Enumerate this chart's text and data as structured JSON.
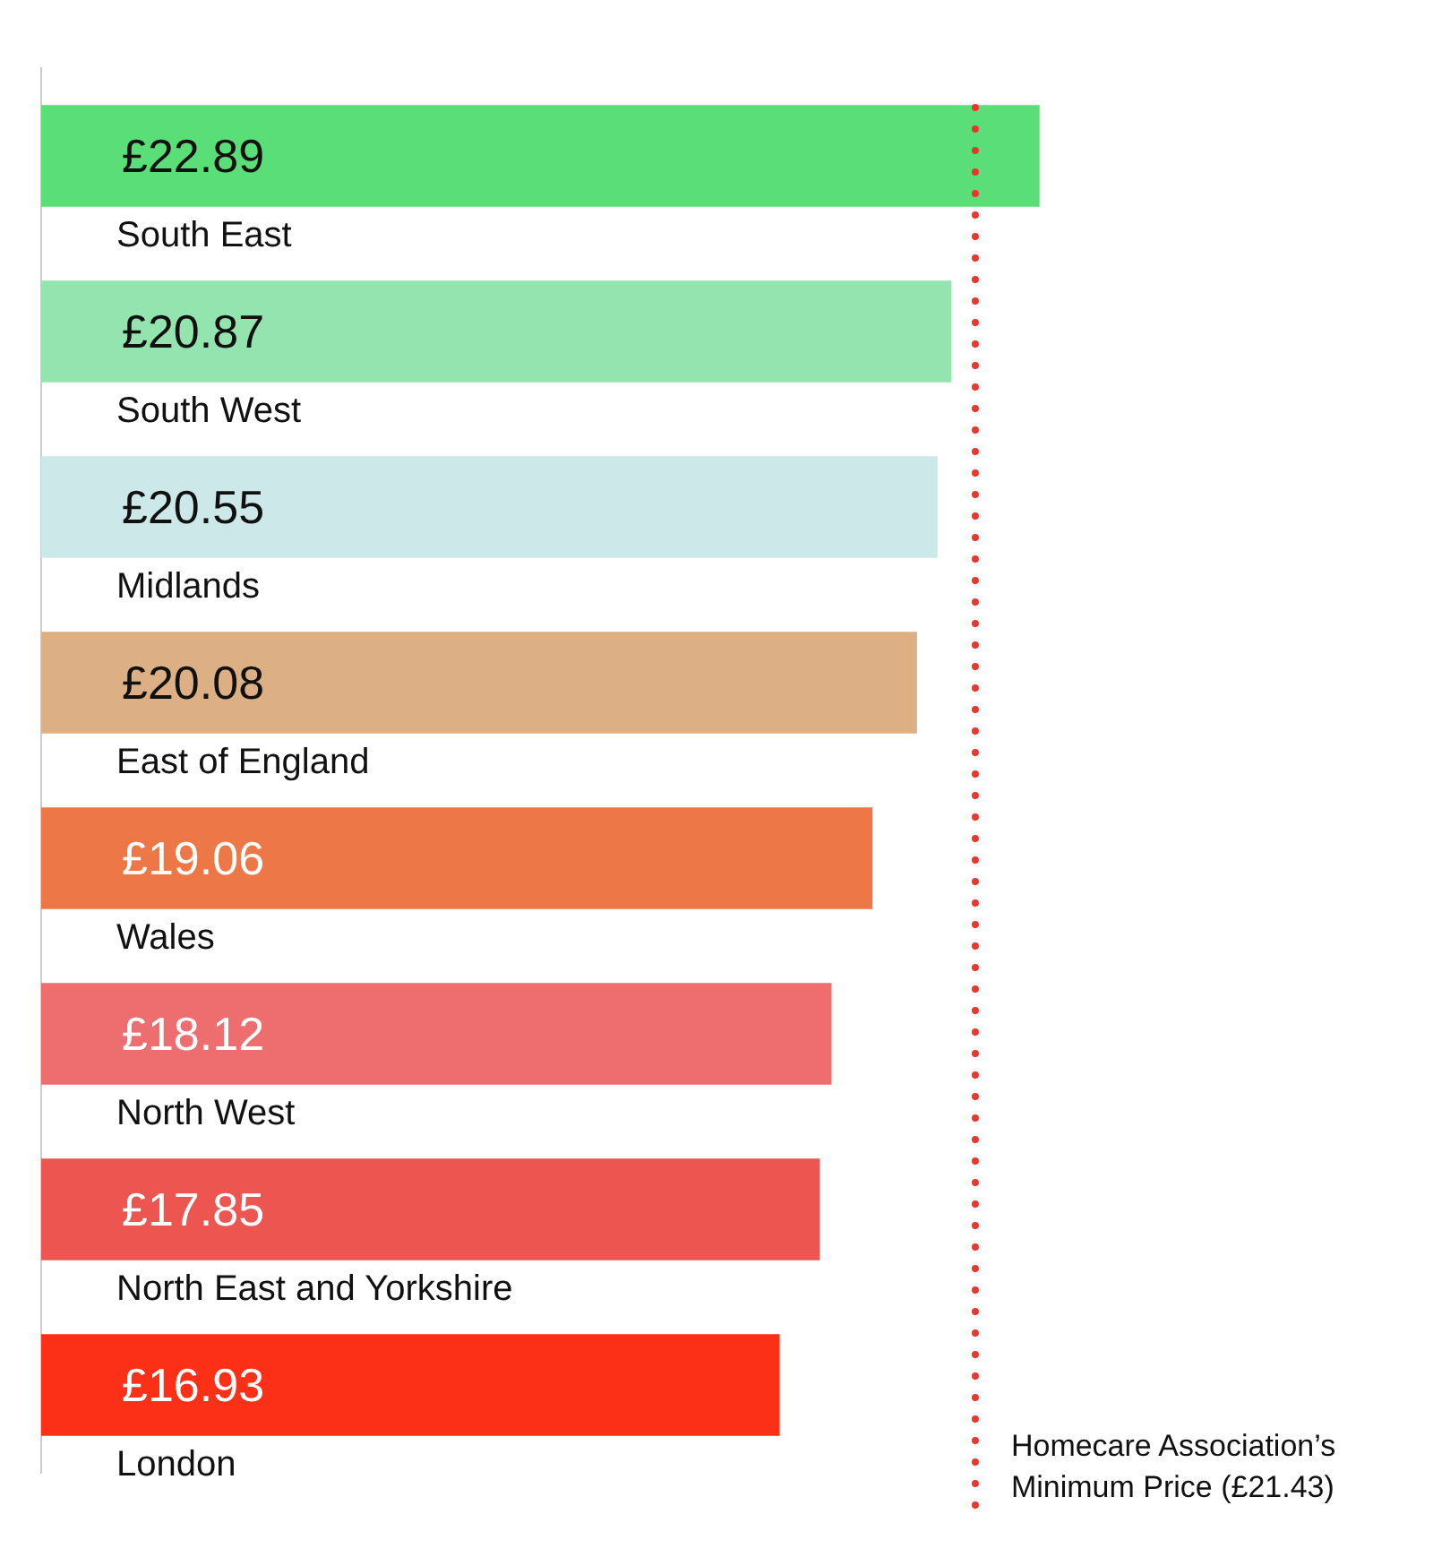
{
  "chart_data": {
    "type": "bar",
    "orientation": "horizontal",
    "categories": [
      "South East",
      "South West",
      "Midlands",
      "East of England",
      "Wales",
      "North West",
      "North East and Yorkshire",
      "London"
    ],
    "values": [
      22.89,
      20.87,
      20.55,
      20.08,
      19.06,
      18.12,
      17.85,
      16.93
    ],
    "colors": [
      "#5ade78",
      "#93e4ae",
      "#cde8e8",
      "#dcb084",
      "#ee7748",
      "#ee6e70",
      "#ec5550",
      "#fb3017"
    ],
    "value_labels": [
      "£22.89",
      "£20.87",
      "£20.55",
      "£20.08",
      "£19.06",
      "£18.12",
      "£17.85",
      "£16.93"
    ],
    "ref_lines": [
      {
        "axis": "x",
        "value": 21.43,
        "label": "Homecare Association’s Minimum Price (£21.43)",
        "color": "#e8382c",
        "line_style": "dotted"
      }
    ],
    "grid": false,
    "legend": false
  }
}
